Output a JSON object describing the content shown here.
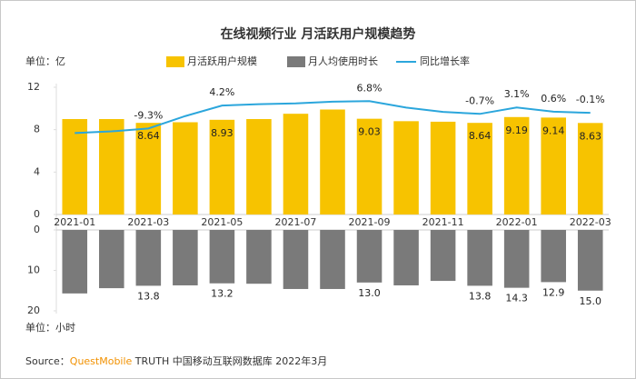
{
  "chart_data": [
    {
      "type": "bar",
      "title": "在线视频行业 月活跃用户规模趋势",
      "y_unit_label": "单位：亿",
      "categories": [
        "2021-01",
        null,
        "2021-03",
        null,
        "2021-05",
        null,
        "2021-07",
        null,
        "2021-09",
        null,
        "2021-11",
        null,
        "2022-01",
        null,
        "2022-03"
      ],
      "ylim": [
        0,
        12
      ],
      "yticks": [
        0,
        4,
        8,
        12
      ],
      "y2lim": [
        -60,
        15
      ],
      "series": [
        {
          "name": "月活跃用户规模",
          "type": "bar",
          "color": "#f7c300",
          "values": [
            9.0,
            9.0,
            8.64,
            8.7,
            8.93,
            9.0,
            9.5,
            9.9,
            9.03,
            8.8,
            8.75,
            8.64,
            9.19,
            9.14,
            8.63
          ],
          "value_labels": [
            null,
            null,
            "8.64",
            null,
            "8.93",
            null,
            null,
            null,
            "9.03",
            null,
            null,
            "8.64",
            "9.19",
            "9.14",
            "8.63"
          ]
        },
        {
          "name": "同比增长率",
          "type": "line",
          "axis": "y2",
          "color": "#2ba6dc",
          "values": [
            -12,
            -11,
            -9.3,
            -2,
            4.2,
            5,
            5.5,
            6.5,
            6.8,
            3,
            0.5,
            -0.7,
            3.1,
            0.6,
            -0.1
          ],
          "value_labels": [
            null,
            null,
            "-9.3%",
            null,
            "4.2%",
            null,
            null,
            null,
            "6.8%",
            null,
            null,
            "-0.7%",
            "3.1%",
            "0.6%",
            "-0.1%"
          ]
        }
      ]
    },
    {
      "type": "bar",
      "y_unit_label": "单位：小时",
      "ylim": [
        20,
        0
      ],
      "yticks": [
        0,
        10,
        20
      ],
      "series": [
        {
          "name": "月人均使用时长",
          "type": "bar",
          "color": "#7a7a7a",
          "values": [
            15.7,
            14.4,
            13.8,
            13.7,
            13.2,
            13.3,
            14.6,
            14.6,
            13.0,
            13.7,
            12.6,
            13.8,
            14.3,
            12.9,
            15.0
          ],
          "value_labels": [
            null,
            null,
            "13.8",
            null,
            "13.2",
            null,
            null,
            null,
            "13.0",
            null,
            null,
            "13.8",
            "14.3",
            "12.9",
            "15.0"
          ]
        }
      ]
    }
  ],
  "source": [
    "Source：",
    "QuestMobile",
    " TRUTH 中国移动互联网数据库 2022年3月"
  ]
}
